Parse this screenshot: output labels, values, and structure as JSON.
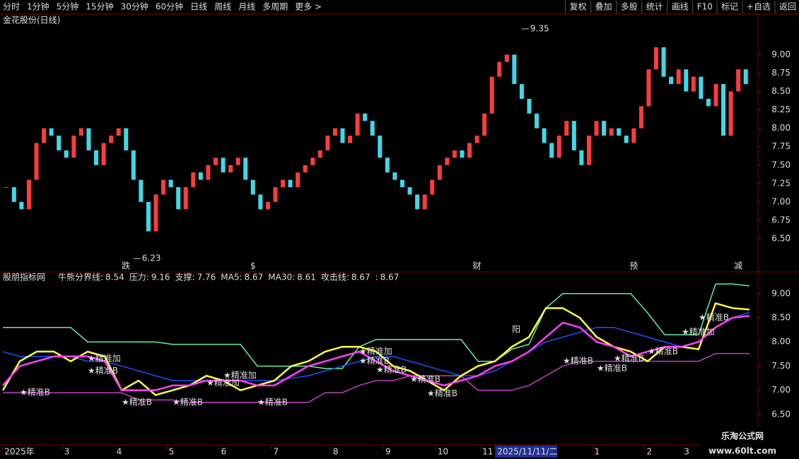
{
  "toolbar": {
    "left": [
      "分时",
      "1分钟",
      "5分钟",
      "15分钟",
      "30分钟",
      "60分钟",
      "日线",
      "周线",
      "月线",
      "多周期",
      "更多 >"
    ],
    "active": 6,
    "right": [
      "复权",
      "叠加",
      "多股",
      "统计",
      "画线",
      "F10",
      "标记",
      "+自选",
      "返回"
    ]
  },
  "main": {
    "title": "金花股份(日线)",
    "ylim": [
      6.05,
      9.55
    ],
    "yticks": [
      {
        "value": 9,
        "label": "9.00"
      },
      8.75,
      {
        "value": 8.5,
        "label": "8.50"
      },
      8.25,
      {
        "value": 8,
        "label": "8.00"
      },
      7.75,
      {
        "value": 7.5,
        "label": "7.50"
      },
      7.25,
      {
        "value": 7,
        "label": "7.00"
      },
      6.75,
      {
        "value": 6.5,
        "label": "6.50"
      }
    ],
    "up_color": "#ff3c3c",
    "down_color": "#40d8e8",
    "closes": [
      7.2,
      7.0,
      6.9,
      7.3,
      7.8,
      8.0,
      7.9,
      7.7,
      7.6,
      7.9,
      8.0,
      7.7,
      7.5,
      7.8,
      7.9,
      8.0,
      7.7,
      7.3,
      7.0,
      6.6,
      7.1,
      7.3,
      7.2,
      6.9,
      7.2,
      7.4,
      7.3,
      7.5,
      7.6,
      7.4,
      7.5,
      7.6,
      7.3,
      7.1,
      6.9,
      7.0,
      7.2,
      7.3,
      7.2,
      7.4,
      7.5,
      7.6,
      7.7,
      7.9,
      8.0,
      7.8,
      7.9,
      8.2,
      8.1,
      7.9,
      7.6,
      7.4,
      7.3,
      7.2,
      7.1,
      6.9,
      7.1,
      7.3,
      7.5,
      7.6,
      7.7,
      7.6,
      7.8,
      7.9,
      8.2,
      8.7,
      8.9,
      9.0,
      8.6,
      8.4,
      8.2,
      8.0,
      7.8,
      7.6,
      7.9,
      8.1,
      7.7,
      7.5,
      7.9,
      8.1,
      7.9,
      8.0,
      7.9,
      7.8,
      8.0,
      8.3,
      8.8,
      9.1,
      8.7,
      8.6,
      8.8,
      8.5,
      8.7,
      8.4,
      8.3,
      8.6,
      7.9,
      8.5,
      8.8,
      8.6
    ],
    "high": {
      "value": 9.35,
      "index": 69
    },
    "low": {
      "value": 6.23,
      "index": 17
    },
    "events": [
      {
        "label": "跌",
        "index": 16,
        "color": "#30c030"
      },
      {
        "label": "$",
        "index": 33,
        "color": "#ff3030"
      },
      {
        "label": "财",
        "index": 63,
        "color": "#4080ff"
      },
      {
        "label": "预",
        "index": 84,
        "color": "#e08020"
      },
      {
        "label": "减",
        "index": 98,
        "color": "#30c030"
      }
    ]
  },
  "indicator": {
    "title": "股朋指标网",
    "ylim": [
      5.87,
      9.45
    ],
    "yticks": [
      {
        "value": 9,
        "label": "9.00"
      },
      {
        "value": 8.5,
        "label": "8.50"
      },
      {
        "value": 8,
        "label": "8.00"
      },
      {
        "value": 7.5,
        "label": "7.50"
      },
      {
        "value": 7,
        "label": "7.00"
      },
      {
        "value": 6.5,
        "label": "6.50"
      }
    ],
    "legend": [
      {
        "name": "牛熊分界线:",
        "value": 8.54,
        "color": "#ff40ff"
      },
      {
        "name": "压力:",
        "value": 9.16,
        "color": "#60f0a0"
      },
      {
        "name": "支撑:",
        "value": 7.76,
        "color": "#ff40ff"
      },
      {
        "name": "MA5:",
        "value": 8.67,
        "color": "#ffffff"
      },
      {
        "name": "MA30:",
        "value": 8.61,
        "color": "#2050ff"
      },
      {
        "name": "攻击线:",
        "value": 8.67,
        "color": "#ffff40"
      },
      {
        "name": ":",
        "value": 8.67,
        "color": "#40e040"
      }
    ],
    "series": [
      {
        "color": "#60f0a0",
        "values": [
          8.3,
          8.3,
          8.3,
          8.3,
          8.3,
          8.0,
          8.0,
          8.0,
          8.0,
          8.0,
          7.95,
          7.95,
          7.95,
          7.95,
          7.95,
          7.5,
          7.5,
          7.5,
          7.5,
          7.45,
          7.45,
          7.9,
          8.05,
          8.05,
          8.05,
          8.05,
          8.05,
          8.05,
          7.6,
          7.6,
          7.85,
          7.95,
          8.7,
          9.0,
          9.0,
          9.0,
          9.0,
          9.0,
          8.6,
          8.15,
          8.15,
          8.15,
          9.2,
          9.2,
          9.16
        ]
      },
      {
        "color": "#c040c0",
        "values": [
          6.95,
          6.95,
          6.95,
          6.95,
          6.95,
          6.95,
          6.95,
          6.95,
          6.8,
          6.8,
          6.8,
          6.75,
          6.75,
          6.75,
          6.75,
          6.75,
          6.75,
          6.75,
          6.75,
          6.95,
          6.95,
          7.1,
          7.2,
          7.2,
          7.3,
          7.3,
          7.3,
          7.3,
          7.0,
          7.0,
          7.0,
          7.1,
          7.3,
          7.5,
          7.6,
          7.6,
          7.6,
          7.6,
          7.6,
          7.6,
          7.6,
          7.6,
          7.76,
          7.76,
          7.76
        ]
      },
      {
        "color": "#2050ff",
        "values": [
          7.8,
          7.7,
          7.7,
          7.7,
          7.7,
          7.6,
          7.6,
          7.5,
          7.4,
          7.3,
          7.2,
          7.2,
          7.2,
          7.2,
          7.2,
          7.2,
          7.2,
          7.25,
          7.3,
          7.4,
          7.5,
          7.6,
          7.7,
          7.7,
          7.6,
          7.5,
          7.4,
          7.3,
          7.3,
          7.4,
          7.6,
          7.8,
          8.0,
          8.1,
          8.2,
          8.3,
          8.3,
          8.2,
          8.1,
          8.0,
          7.9,
          8.0,
          8.3,
          8.5,
          8.61
        ]
      },
      {
        "color": "#ffff40",
        "values": [
          7.0,
          7.6,
          7.8,
          7.8,
          7.6,
          7.8,
          7.7,
          7.0,
          7.2,
          6.9,
          7.0,
          7.1,
          7.3,
          7.2,
          7.0,
          7.1,
          7.2,
          7.5,
          7.6,
          7.8,
          7.9,
          7.9,
          7.8,
          7.5,
          7.4,
          7.2,
          7.0,
          7.3,
          7.5,
          7.6,
          7.9,
          8.1,
          8.7,
          8.7,
          8.5,
          8.1,
          7.9,
          7.8,
          7.6,
          7.9,
          7.9,
          7.85,
          8.8,
          8.7,
          8.67
        ]
      },
      {
        "color": "#ff40ff",
        "values": [
          7.1,
          7.5,
          7.6,
          7.7,
          7.7,
          7.7,
          7.6,
          7.0,
          7.0,
          7.0,
          7.1,
          7.1,
          7.2,
          7.2,
          7.2,
          7.1,
          7.1,
          7.3,
          7.5,
          7.6,
          7.7,
          7.8,
          7.6,
          7.4,
          7.3,
          7.2,
          7.1,
          7.2,
          7.3,
          7.5,
          7.6,
          7.8,
          8.1,
          8.4,
          8.3,
          8.0,
          7.9,
          7.7,
          7.8,
          7.9,
          7.9,
          8.0,
          8.3,
          8.5,
          8.54
        ]
      }
    ],
    "signals": [
      {
        "label": "★精准B",
        "index": 1,
        "value": 6.95
      },
      {
        "label": "★精准B",
        "index": 5,
        "value": 7.4
      },
      {
        "label": "★精准加",
        "index": 5,
        "value": 7.65
      },
      {
        "label": "★精准B",
        "index": 7,
        "value": 6.75
      },
      {
        "label": "★精准B",
        "index": 10,
        "value": 6.75
      },
      {
        "label": "★精准加",
        "index": 12,
        "value": 7.15
      },
      {
        "label": "★精准加",
        "index": 13,
        "value": 7.3
      },
      {
        "label": "★精准B",
        "index": 15,
        "value": 6.75
      },
      {
        "label": "★精准加",
        "index": 21,
        "value": 7.8
      },
      {
        "label": "★精准B",
        "index": 21,
        "value": 7.6
      },
      {
        "label": "★精准B",
        "index": 22,
        "value": 7.42
      },
      {
        "label": "★精准B",
        "index": 24,
        "value": 7.22
      },
      {
        "label": "★精准B",
        "index": 25,
        "value": 6.93
      },
      {
        "label": "★精准B",
        "index": 33,
        "value": 7.6
      },
      {
        "label": "★精准B",
        "index": 35,
        "value": 7.45
      },
      {
        "label": "★精准B",
        "index": 36,
        "value": 7.65
      },
      {
        "label": "★精准B",
        "index": 38,
        "value": 7.8
      },
      {
        "label": "★精准加",
        "index": 40,
        "value": 8.2
      },
      {
        "label": "★精准B",
        "index": 41,
        "value": 8.5
      }
    ],
    "note": {
      "label": "阳",
      "index": 30,
      "value": 8.25
    }
  },
  "dates": [
    {
      "label": "2025年",
      "index": 0
    },
    {
      "label": "3",
      "index": 8
    },
    {
      "label": "4",
      "index": 15
    },
    {
      "label": "5",
      "index": 22
    },
    {
      "label": "6",
      "index": 29
    },
    {
      "label": "7",
      "index": 36
    },
    {
      "label": "8",
      "index": 44
    },
    {
      "label": "9",
      "index": 51
    },
    {
      "label": "10",
      "index": 58
    },
    {
      "label": "11",
      "index": 64
    },
    {
      "label": "2025/11/11/二",
      "index": 66
    },
    {
      "label": "1",
      "index": 79
    },
    {
      "label": "2",
      "index": 86
    },
    {
      "label": "3",
      "index": 91
    }
  ],
  "watermark": [
    "乐淘公式网",
    "www.60lt.com"
  ]
}
